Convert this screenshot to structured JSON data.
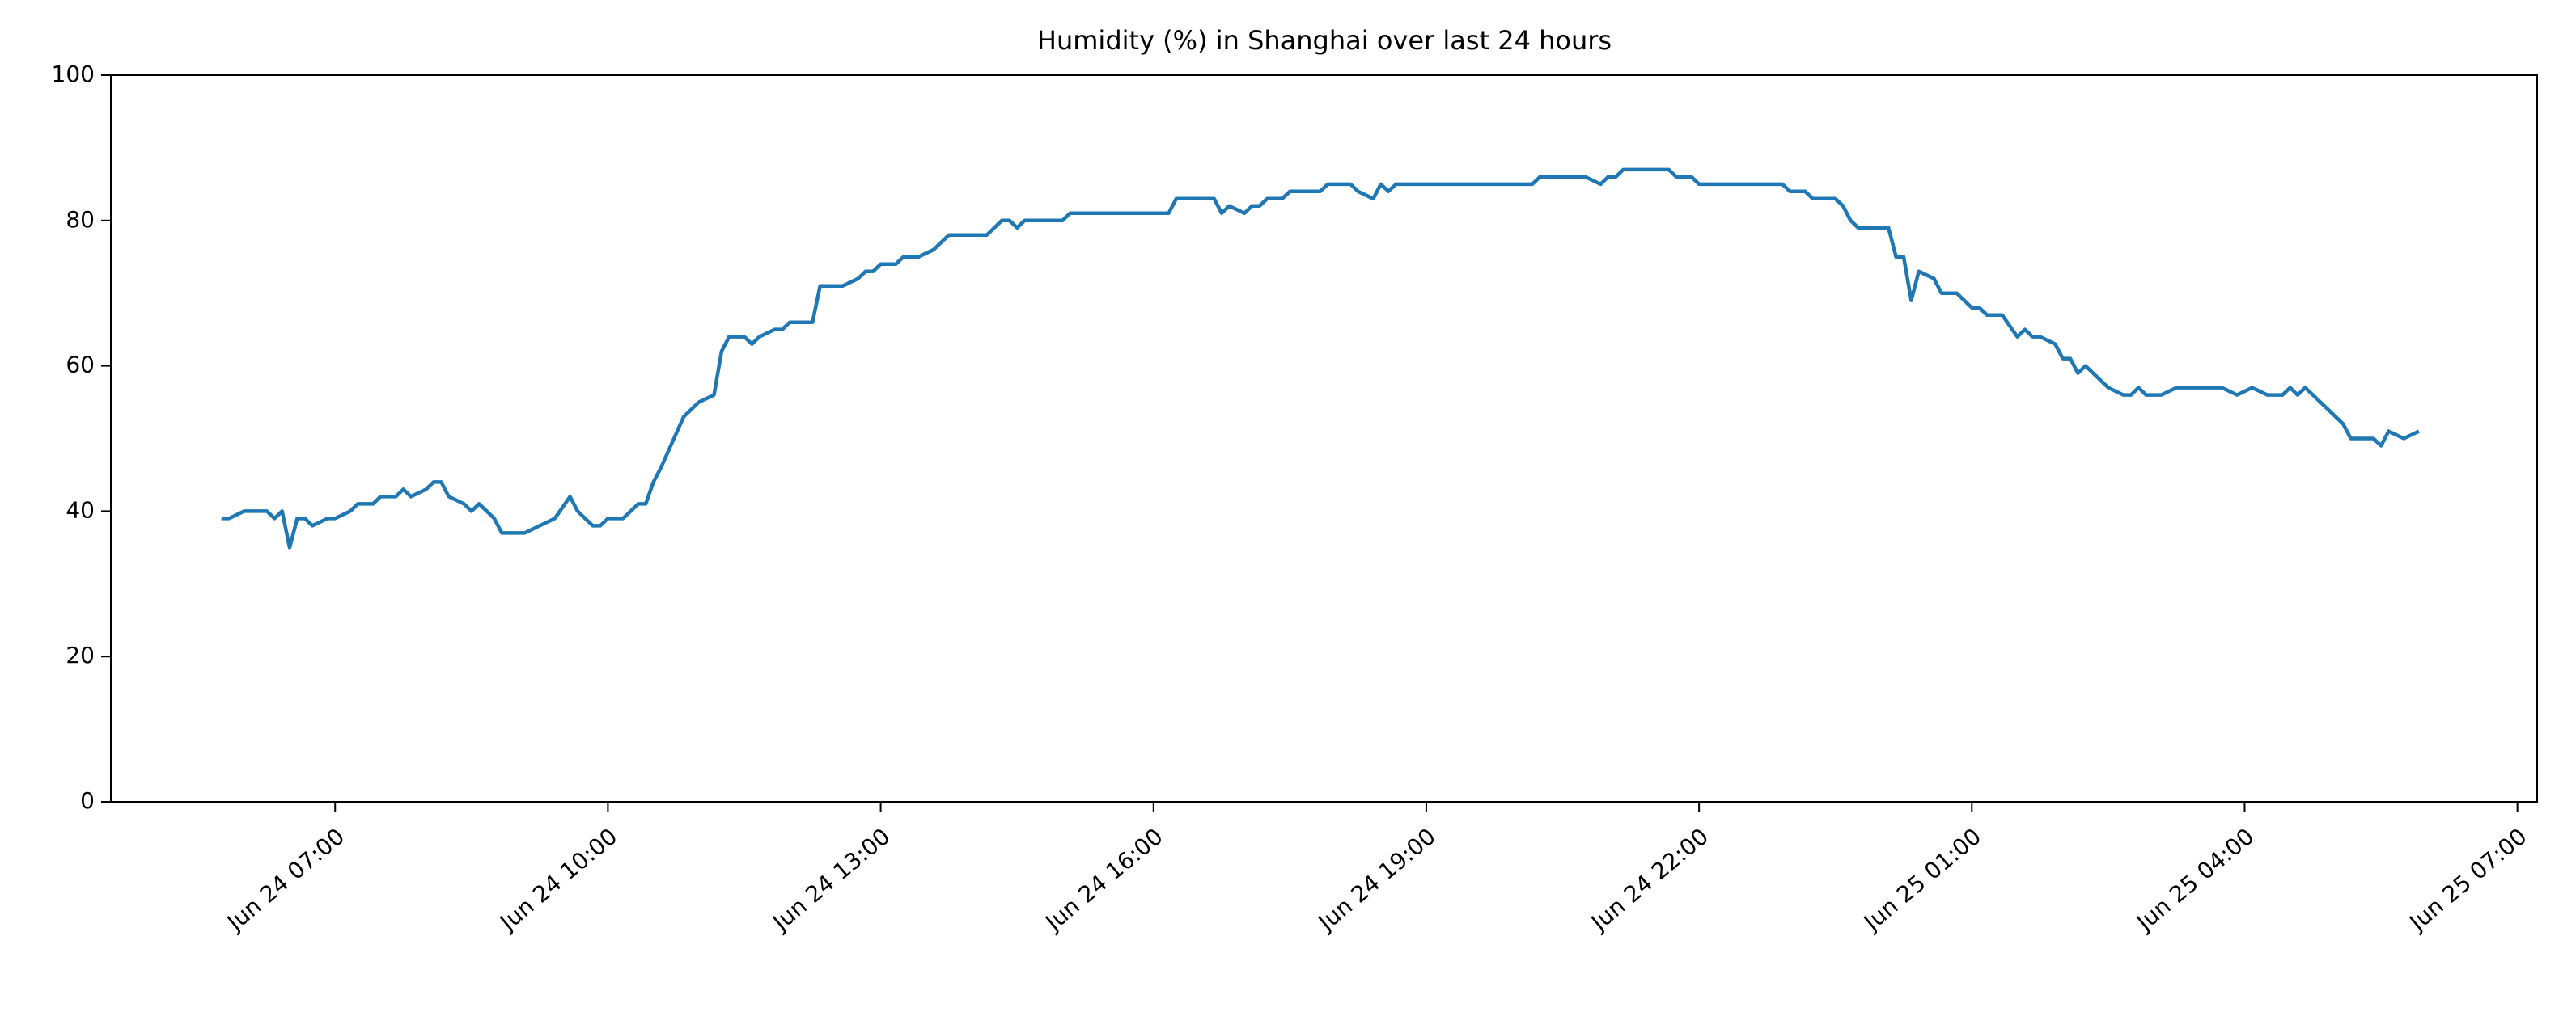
{
  "chart_data": {
    "type": "line",
    "title": "Humidity (%) in Shanghai over last 24 hours",
    "color": "#1f77b4",
    "x": [
      "Jun 24 05:45",
      "Jun 24 05:50",
      "Jun 24 06:00",
      "Jun 24 06:05",
      "Jun 24 06:15",
      "Jun 24 06:20",
      "Jun 24 06:25",
      "Jun 24 06:30",
      "Jun 24 06:35",
      "Jun 24 06:40",
      "Jun 24 06:45",
      "Jun 24 06:55",
      "Jun 24 07:00",
      "Jun 24 07:10",
      "Jun 24 07:15",
      "Jun 24 07:25",
      "Jun 24 07:30",
      "Jun 24 07:40",
      "Jun 24 07:45",
      "Jun 24 07:50",
      "Jun 24 08:00",
      "Jun 24 08:05",
      "Jun 24 08:10",
      "Jun 24 08:15",
      "Jun 24 08:25",
      "Jun 24 08:30",
      "Jun 24 08:35",
      "Jun 24 08:40",
      "Jun 24 08:45",
      "Jun 24 08:50",
      "Jun 24 09:05",
      "Jun 24 09:15",
      "Jun 24 09:25",
      "Jun 24 09:35",
      "Jun 24 09:40",
      "Jun 24 09:50",
      "Jun 24 09:55",
      "Jun 24 10:00",
      "Jun 24 10:10",
      "Jun 24 10:20",
      "Jun 24 10:25",
      "Jun 24 10:30",
      "Jun 24 10:35",
      "Jun 24 10:50",
      "Jun 24 11:00",
      "Jun 24 11:10",
      "Jun 24 11:15",
      "Jun 24 11:20",
      "Jun 24 11:30",
      "Jun 24 11:35",
      "Jun 24 11:40",
      "Jun 24 11:50",
      "Jun 24 11:55",
      "Jun 24 12:00",
      "Jun 24 12:15",
      "Jun 24 12:20",
      "Jun 24 12:35",
      "Jun 24 12:45",
      "Jun 24 12:50",
      "Jun 24 12:55",
      "Jun 24 13:00",
      "Jun 24 13:10",
      "Jun 24 13:15",
      "Jun 24 13:25",
      "Jun 24 13:35",
      "Jun 24 13:40",
      "Jun 24 13:45",
      "Jun 24 14:10",
      "Jun 24 14:20",
      "Jun 24 14:25",
      "Jun 24 14:30",
      "Jun 24 14:35",
      "Jun 24 15:00",
      "Jun 24 15:05",
      "Jun 24 16:10",
      "Jun 24 16:15",
      "Jun 24 16:40",
      "Jun 24 16:45",
      "Jun 24 16:50",
      "Jun 24 17:00",
      "Jun 24 17:05",
      "Jun 24 17:10",
      "Jun 24 17:15",
      "Jun 24 17:25",
      "Jun 24 17:30",
      "Jun 24 17:50",
      "Jun 24 17:55",
      "Jun 24 18:10",
      "Jun 24 18:15",
      "Jun 24 18:25",
      "Jun 24 18:30",
      "Jun 24 18:35",
      "Jun 24 18:40",
      "Jun 24 20:10",
      "Jun 24 20:15",
      "Jun 24 20:45",
      "Jun 24 20:55",
      "Jun 24 21:00",
      "Jun 24 21:05",
      "Jun 24 21:10",
      "Jun 24 21:40",
      "Jun 24 21:45",
      "Jun 24 21:55",
      "Jun 24 22:00",
      "Jun 24 22:55",
      "Jun 24 23:00",
      "Jun 24 23:10",
      "Jun 24 23:15",
      "Jun 24 23:30",
      "Jun 24 23:35",
      "Jun 24 23:40",
      "Jun 24 23:45",
      "Jun 25 00:05",
      "Jun 25 00:10",
      "Jun 25 00:15",
      "Jun 25 00:20",
      "Jun 25 00:25",
      "Jun 25 00:35",
      "Jun 25 00:40",
      "Jun 25 00:50",
      "Jun 25 00:55",
      "Jun 25 01:00",
      "Jun 25 01:05",
      "Jun 25 01:10",
      "Jun 25 01:20",
      "Jun 25 01:30",
      "Jun 25 01:35",
      "Jun 25 01:40",
      "Jun 25 01:45",
      "Jun 25 01:55",
      "Jun 25 02:00",
      "Jun 25 02:05",
      "Jun 25 02:10",
      "Jun 25 02:15",
      "Jun 25 02:20",
      "Jun 25 02:30",
      "Jun 25 02:40",
      "Jun 25 02:45",
      "Jun 25 02:50",
      "Jun 25 02:55",
      "Jun 25 03:05",
      "Jun 25 03:15",
      "Jun 25 03:45",
      "Jun 25 03:55",
      "Jun 25 04:05",
      "Jun 25 04:15",
      "Jun 25 04:25",
      "Jun 25 04:30",
      "Jun 25 04:35",
      "Jun 25 04:40",
      "Jun 25 04:45",
      "Jun 25 04:55",
      "Jun 25 05:05",
      "Jun 25 05:10",
      "Jun 25 05:25",
      "Jun 25 05:30",
      "Jun 25 05:35",
      "Jun 25 05:45",
      "Jun 25 05:55"
    ],
    "values": [
      39,
      39,
      40,
      40,
      40,
      39,
      40,
      35,
      39,
      39,
      38,
      39,
      39,
      40,
      41,
      41,
      42,
      42,
      43,
      42,
      43,
      44,
      44,
      42,
      41,
      40,
      41,
      40,
      39,
      37,
      37,
      38,
      39,
      42,
      40,
      38,
      38,
      39,
      39,
      41,
      41,
      44,
      46,
      53,
      55,
      56,
      62,
      64,
      64,
      63,
      64,
      65,
      65,
      66,
      66,
      71,
      71,
      72,
      73,
      73,
      74,
      74,
      75,
      75,
      76,
      77,
      78,
      78,
      80,
      80,
      79,
      80,
      80,
      81,
      81,
      83,
      83,
      81,
      82,
      81,
      82,
      82,
      83,
      83,
      84,
      84,
      85,
      85,
      84,
      83,
      85,
      84,
      85,
      85,
      86,
      86,
      85,
      86,
      86,
      87,
      87,
      86,
      86,
      85,
      85,
      84,
      84,
      83,
      83,
      82,
      80,
      79,
      79,
      75,
      75,
      69,
      73,
      72,
      70,
      70,
      69,
      68,
      68,
      67,
      67,
      64,
      65,
      64,
      64,
      63,
      61,
      61,
      59,
      60,
      59,
      57,
      56,
      56,
      57,
      56,
      56,
      57,
      57,
      56,
      57,
      56,
      56,
      57,
      56,
      57,
      56,
      54,
      52,
      50,
      50,
      49,
      51,
      50,
      51
    ],
    "xlim": [
      "Jun 24 04:32",
      "Jun 25 07:13"
    ],
    "xticks": [
      "Jun 24 07:00",
      "Jun 24 10:00",
      "Jun 24 13:00",
      "Jun 24 16:00",
      "Jun 24 19:00",
      "Jun 24 22:00",
      "Jun 25 01:00",
      "Jun 25 04:00",
      "Jun 25 07:00"
    ],
    "ylim": [
      0,
      100
    ],
    "yticks": [
      0,
      20,
      40,
      60,
      80,
      100
    ],
    "grid": false
  }
}
